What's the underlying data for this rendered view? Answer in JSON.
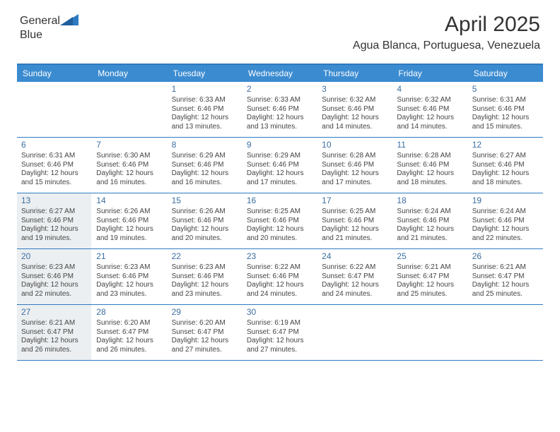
{
  "brand": {
    "text1": "General",
    "text2": "Blue"
  },
  "title": "April 2025",
  "location": "Agua Blanca, Portuguesa, Venezuela",
  "colors": {
    "header_bar": "#3b8bd0",
    "accent_line": "#2f7ac0",
    "shade_bg": "#eceff1",
    "text": "#444444",
    "daynum": "#3b6ea0"
  },
  "daynames": [
    "Sunday",
    "Monday",
    "Tuesday",
    "Wednesday",
    "Thursday",
    "Friday",
    "Saturday"
  ],
  "weeks": [
    [
      {
        "n": "",
        "sr": "",
        "ss": "",
        "dl": "",
        "shade": false
      },
      {
        "n": "",
        "sr": "",
        "ss": "",
        "dl": "",
        "shade": false
      },
      {
        "n": "1",
        "sr": "Sunrise: 6:33 AM",
        "ss": "Sunset: 6:46 PM",
        "dl": "Daylight: 12 hours and 13 minutes.",
        "shade": false
      },
      {
        "n": "2",
        "sr": "Sunrise: 6:33 AM",
        "ss": "Sunset: 6:46 PM",
        "dl": "Daylight: 12 hours and 13 minutes.",
        "shade": false
      },
      {
        "n": "3",
        "sr": "Sunrise: 6:32 AM",
        "ss": "Sunset: 6:46 PM",
        "dl": "Daylight: 12 hours and 14 minutes.",
        "shade": false
      },
      {
        "n": "4",
        "sr": "Sunrise: 6:32 AM",
        "ss": "Sunset: 6:46 PM",
        "dl": "Daylight: 12 hours and 14 minutes.",
        "shade": false
      },
      {
        "n": "5",
        "sr": "Sunrise: 6:31 AM",
        "ss": "Sunset: 6:46 PM",
        "dl": "Daylight: 12 hours and 15 minutes.",
        "shade": false
      }
    ],
    [
      {
        "n": "6",
        "sr": "Sunrise: 6:31 AM",
        "ss": "Sunset: 6:46 PM",
        "dl": "Daylight: 12 hours and 15 minutes.",
        "shade": false
      },
      {
        "n": "7",
        "sr": "Sunrise: 6:30 AM",
        "ss": "Sunset: 6:46 PM",
        "dl": "Daylight: 12 hours and 16 minutes.",
        "shade": false
      },
      {
        "n": "8",
        "sr": "Sunrise: 6:29 AM",
        "ss": "Sunset: 6:46 PM",
        "dl": "Daylight: 12 hours and 16 minutes.",
        "shade": false
      },
      {
        "n": "9",
        "sr": "Sunrise: 6:29 AM",
        "ss": "Sunset: 6:46 PM",
        "dl": "Daylight: 12 hours and 17 minutes.",
        "shade": false
      },
      {
        "n": "10",
        "sr": "Sunrise: 6:28 AM",
        "ss": "Sunset: 6:46 PM",
        "dl": "Daylight: 12 hours and 17 minutes.",
        "shade": false
      },
      {
        "n": "11",
        "sr": "Sunrise: 6:28 AM",
        "ss": "Sunset: 6:46 PM",
        "dl": "Daylight: 12 hours and 18 minutes.",
        "shade": false
      },
      {
        "n": "12",
        "sr": "Sunrise: 6:27 AM",
        "ss": "Sunset: 6:46 PM",
        "dl": "Daylight: 12 hours and 18 minutes.",
        "shade": false
      }
    ],
    [
      {
        "n": "13",
        "sr": "Sunrise: 6:27 AM",
        "ss": "Sunset: 6:46 PM",
        "dl": "Daylight: 12 hours and 19 minutes.",
        "shade": true
      },
      {
        "n": "14",
        "sr": "Sunrise: 6:26 AM",
        "ss": "Sunset: 6:46 PM",
        "dl": "Daylight: 12 hours and 19 minutes.",
        "shade": false
      },
      {
        "n": "15",
        "sr": "Sunrise: 6:26 AM",
        "ss": "Sunset: 6:46 PM",
        "dl": "Daylight: 12 hours and 20 minutes.",
        "shade": false
      },
      {
        "n": "16",
        "sr": "Sunrise: 6:25 AM",
        "ss": "Sunset: 6:46 PM",
        "dl": "Daylight: 12 hours and 20 minutes.",
        "shade": false
      },
      {
        "n": "17",
        "sr": "Sunrise: 6:25 AM",
        "ss": "Sunset: 6:46 PM",
        "dl": "Daylight: 12 hours and 21 minutes.",
        "shade": false
      },
      {
        "n": "18",
        "sr": "Sunrise: 6:24 AM",
        "ss": "Sunset: 6:46 PM",
        "dl": "Daylight: 12 hours and 21 minutes.",
        "shade": false
      },
      {
        "n": "19",
        "sr": "Sunrise: 6:24 AM",
        "ss": "Sunset: 6:46 PM",
        "dl": "Daylight: 12 hours and 22 minutes.",
        "shade": false
      }
    ],
    [
      {
        "n": "20",
        "sr": "Sunrise: 6:23 AM",
        "ss": "Sunset: 6:46 PM",
        "dl": "Daylight: 12 hours and 22 minutes.",
        "shade": true
      },
      {
        "n": "21",
        "sr": "Sunrise: 6:23 AM",
        "ss": "Sunset: 6:46 PM",
        "dl": "Daylight: 12 hours and 23 minutes.",
        "shade": false
      },
      {
        "n": "22",
        "sr": "Sunrise: 6:23 AM",
        "ss": "Sunset: 6:46 PM",
        "dl": "Daylight: 12 hours and 23 minutes.",
        "shade": false
      },
      {
        "n": "23",
        "sr": "Sunrise: 6:22 AM",
        "ss": "Sunset: 6:46 PM",
        "dl": "Daylight: 12 hours and 24 minutes.",
        "shade": false
      },
      {
        "n": "24",
        "sr": "Sunrise: 6:22 AM",
        "ss": "Sunset: 6:47 PM",
        "dl": "Daylight: 12 hours and 24 minutes.",
        "shade": false
      },
      {
        "n": "25",
        "sr": "Sunrise: 6:21 AM",
        "ss": "Sunset: 6:47 PM",
        "dl": "Daylight: 12 hours and 25 minutes.",
        "shade": false
      },
      {
        "n": "26",
        "sr": "Sunrise: 6:21 AM",
        "ss": "Sunset: 6:47 PM",
        "dl": "Daylight: 12 hours and 25 minutes.",
        "shade": false
      }
    ],
    [
      {
        "n": "27",
        "sr": "Sunrise: 6:21 AM",
        "ss": "Sunset: 6:47 PM",
        "dl": "Daylight: 12 hours and 26 minutes.",
        "shade": true
      },
      {
        "n": "28",
        "sr": "Sunrise: 6:20 AM",
        "ss": "Sunset: 6:47 PM",
        "dl": "Daylight: 12 hours and 26 minutes.",
        "shade": false
      },
      {
        "n": "29",
        "sr": "Sunrise: 6:20 AM",
        "ss": "Sunset: 6:47 PM",
        "dl": "Daylight: 12 hours and 27 minutes.",
        "shade": false
      },
      {
        "n": "30",
        "sr": "Sunrise: 6:19 AM",
        "ss": "Sunset: 6:47 PM",
        "dl": "Daylight: 12 hours and 27 minutes.",
        "shade": false
      },
      {
        "n": "",
        "sr": "",
        "ss": "",
        "dl": "",
        "shade": false
      },
      {
        "n": "",
        "sr": "",
        "ss": "",
        "dl": "",
        "shade": false
      },
      {
        "n": "",
        "sr": "",
        "ss": "",
        "dl": "",
        "shade": false
      }
    ]
  ]
}
